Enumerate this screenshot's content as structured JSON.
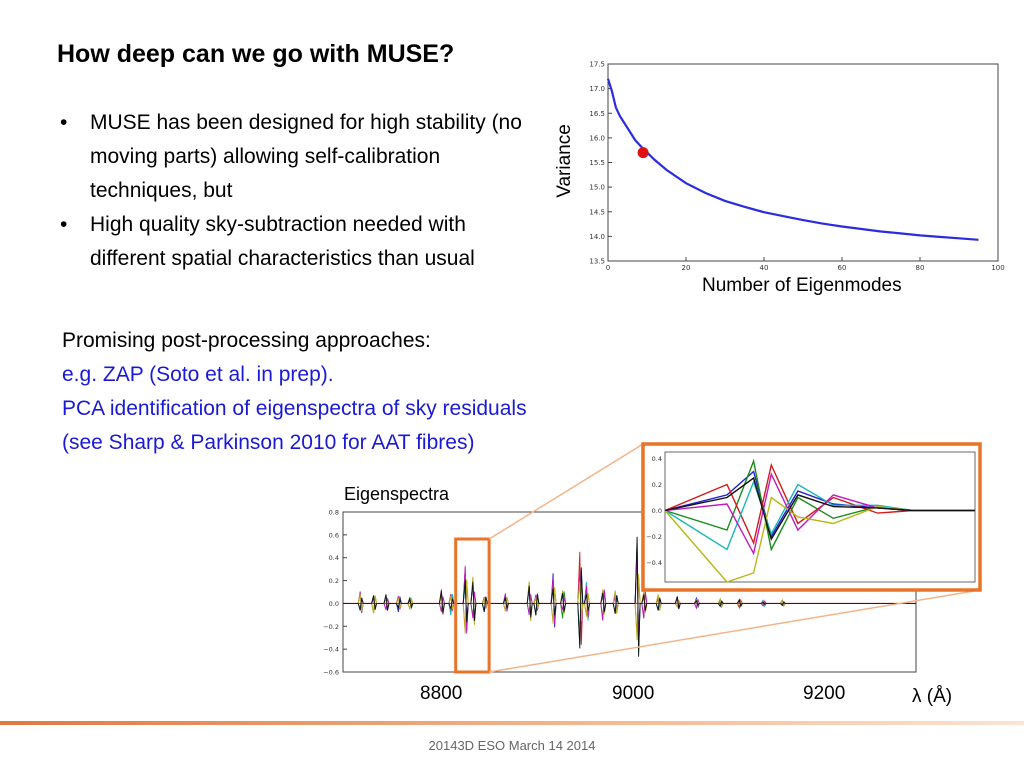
{
  "slide": {
    "title": "How deep can we go with MUSE?",
    "bullets": [
      "MUSE has been designed for high stability (no moving parts) allowing self-calibration techniques, but",
      "High quality sky-subtraction needed with different spatial characteristics than usual"
    ],
    "paragraph": [
      "Promising post-processing approaches:",
      "e.g. ZAP (Soto et al. in prep).",
      "PCA identification of eigenspectra of sky residuals (see Sharp & Parkinson 2010 for AAT fibres)"
    ],
    "footer": "20143D ESO March 14 2014",
    "colors": {
      "accent_orange": "#e8742a",
      "link_blue": "#1a1ad6",
      "curve_blue": "#2b2be0",
      "marker_red": "#e01010"
    }
  },
  "chart_data": [
    {
      "type": "line",
      "title": "",
      "xlabel": "Number of Eigenmodes",
      "ylabel": "Variance",
      "xlim": [
        0,
        100
      ],
      "ylim": [
        13.5,
        17.5
      ],
      "xticks": [
        "0",
        "20",
        "40",
        "60",
        "80",
        "100"
      ],
      "yticks": [
        "13.5",
        "14.0",
        "14.5",
        "15.0",
        "15.5",
        "16.0",
        "16.5",
        "17.0",
        "17.5"
      ],
      "series": [
        {
          "x": [
            0,
            1,
            2,
            3,
            5,
            7,
            9,
            12,
            15,
            20,
            25,
            30,
            35,
            40,
            45,
            50,
            55,
            60,
            65,
            70,
            75,
            80,
            85,
            90,
            95
          ],
          "y": [
            17.2,
            16.95,
            16.62,
            16.45,
            16.2,
            15.95,
            15.78,
            15.55,
            15.35,
            15.08,
            14.88,
            14.72,
            14.6,
            14.49,
            14.41,
            14.33,
            14.26,
            14.2,
            14.15,
            14.1,
            14.06,
            14.02,
            13.99,
            13.96,
            13.93
          ]
        }
      ],
      "highlight": {
        "x": 9,
        "y": 15.7
      }
    },
    {
      "type": "line",
      "title": "Eigenspectra",
      "xlabel": "λ (Å)",
      "ylabel": "",
      "xlim": [
        8690,
        9290
      ],
      "ylim": [
        -0.6,
        0.8
      ],
      "xticks": [
        "8800",
        "9000",
        "9200"
      ],
      "yticks": [
        "−0.6",
        "−0.4",
        "−0.2",
        "0.0",
        "0.2",
        "0.4",
        "0.6",
        "0.8"
      ],
      "series_colors": [
        "#1f1fd0",
        "#1a8c1a",
        "#d21a1a",
        "#18b8b8",
        "#c218c2",
        "#b8b818",
        "#111111"
      ],
      "highlight_box": [
        8808,
        8843
      ]
    },
    {
      "type": "line",
      "title": "",
      "xlim": [
        8808,
        8843
      ],
      "ylim": [
        -0.55,
        0.45
      ],
      "yticks": [
        "0.4",
        "0.2",
        "0.0",
        "−0.2",
        "−0.4"
      ],
      "series_colors": [
        "#1f1fd0",
        "#1a8c1a",
        "#d21a1a",
        "#18b8b8",
        "#c218c2",
        "#b8b818",
        "#111111"
      ]
    }
  ]
}
